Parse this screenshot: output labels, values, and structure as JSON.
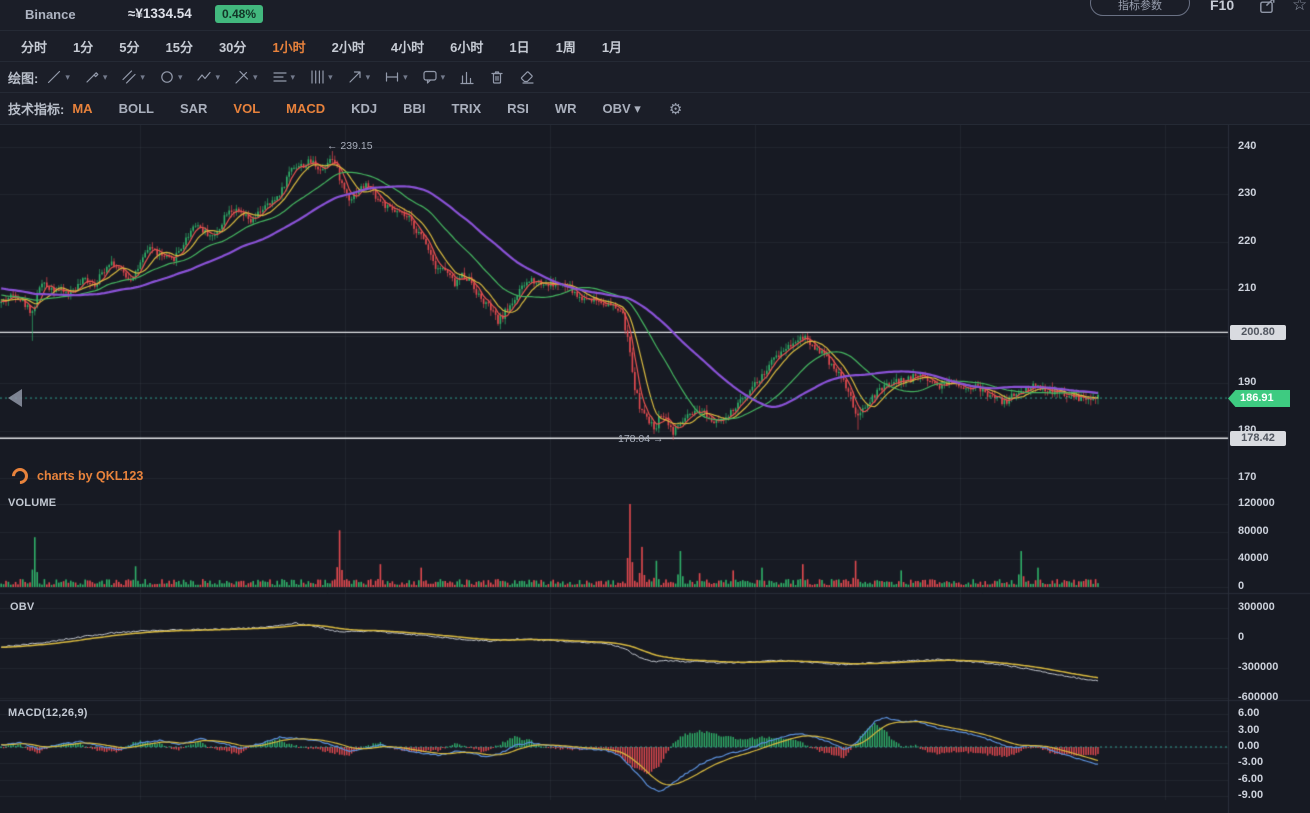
{
  "header": {
    "exchange": "Binance",
    "price_cny": "≈¥1334.54",
    "change_pct": "0.48%",
    "param_button": "指标参数",
    "f10": "F10"
  },
  "timeframes": {
    "items": [
      {
        "label": "分时",
        "active": false
      },
      {
        "label": "1分",
        "active": false
      },
      {
        "label": "5分",
        "active": false
      },
      {
        "label": "15分",
        "active": false
      },
      {
        "label": "30分",
        "active": false
      },
      {
        "label": "1小时",
        "active": true
      },
      {
        "label": "2小时",
        "active": false
      },
      {
        "label": "4小时",
        "active": false
      },
      {
        "label": "6小时",
        "active": false
      },
      {
        "label": "1日",
        "active": false
      },
      {
        "label": "1周",
        "active": false
      },
      {
        "label": "1月",
        "active": false
      }
    ]
  },
  "drawing": {
    "label": "绘图:",
    "tools": [
      "trend-line-icon",
      "brush-icon",
      "channel-icon",
      "circle-icon",
      "zigzag-icon",
      "pitchfork-icon",
      "horizontal-lines-icon",
      "vertical-lines-icon",
      "arrow-icon",
      "measure-icon",
      "comment-icon"
    ],
    "actions": [
      "bar-chart-icon",
      "trash-icon",
      "eraser-icon"
    ]
  },
  "indicators": {
    "label": "技术指标:",
    "items": [
      {
        "label": "MA",
        "active": true
      },
      {
        "label": "BOLL",
        "active": false
      },
      {
        "label": "SAR",
        "active": false
      },
      {
        "label": "VOL",
        "active": true
      },
      {
        "label": "MACD",
        "active": true
      },
      {
        "label": "KDJ",
        "active": false
      },
      {
        "label": "BBI",
        "active": false
      },
      {
        "label": "TRIX",
        "active": false
      },
      {
        "label": "RSI",
        "active": false
      },
      {
        "label": "WR",
        "active": false
      },
      {
        "label": "OBV",
        "active": false,
        "dropdown": true
      }
    ]
  },
  "watermark": "charts by QKL123",
  "panels": {
    "volume_label": "VOLUME",
    "obv_label": "OBV",
    "macd_label": "MACD(12,26,9)"
  },
  "annotations": {
    "high": "← 239.15",
    "low": "178.04 →"
  },
  "price_axis": {
    "ticks": [
      "240",
      "230",
      "220",
      "210",
      "200",
      "190",
      "180",
      "170"
    ],
    "current": "186.91",
    "alert_high": "200.80",
    "alert_low": "178.42"
  },
  "colors": {
    "accent": "#e8823c",
    "up": "#2fae68",
    "down": "#e0494f",
    "ma5": "#e8534f",
    "ma10": "#d8b93f",
    "ma30": "#45b560",
    "ma60": "#8a52d6",
    "obv_line": "#c3c7cf",
    "obv_ma": "#d8b93f",
    "macd_dif": "#5b8fd9",
    "macd_dea": "#d8b93f",
    "dotted_line": "#2f9e8f",
    "alert_line": "#e2e4e8",
    "grid": "rgba(170,180,205,0.07)"
  },
  "chart_data": {
    "type": "candlestick",
    "symbol": "Binance",
    "interval": "1小时",
    "current_price": 186.91,
    "marked_high": 239.15,
    "marked_low": 178.04,
    "alert_lines": [
      200.8,
      178.42
    ],
    "price_axis_ticks": [
      240,
      230,
      220,
      210,
      200,
      190,
      180,
      170
    ],
    "price_keyframes": [
      [
        -150,
        213
      ],
      [
        -90,
        211
      ],
      [
        -40,
        209
      ],
      [
        -15,
        208
      ],
      [
        0,
        207
      ],
      [
        15,
        209
      ],
      [
        28,
        206
      ],
      [
        33,
        205
      ],
      [
        40,
        211
      ],
      [
        55,
        210
      ],
      [
        70,
        209
      ],
      [
        85,
        212
      ],
      [
        95,
        211
      ],
      [
        110,
        216
      ],
      [
        120,
        214
      ],
      [
        130,
        212
      ],
      [
        140,
        215
      ],
      [
        150,
        219
      ],
      [
        160,
        217
      ],
      [
        172,
        216
      ],
      [
        182,
        219
      ],
      [
        195,
        224
      ],
      [
        205,
        222
      ],
      [
        215,
        221
      ],
      [
        228,
        227
      ],
      [
        240,
        226
      ],
      [
        252,
        224
      ],
      [
        262,
        227
      ],
      [
        272,
        228
      ],
      [
        282,
        231
      ],
      [
        292,
        236
      ],
      [
        302,
        236
      ],
      [
        312,
        237
      ],
      [
        322,
        235
      ],
      [
        330,
        238
      ],
      [
        336,
        236
      ],
      [
        342,
        232
      ],
      [
        350,
        229
      ],
      [
        358,
        231
      ],
      [
        368,
        232
      ],
      [
        378,
        229
      ],
      [
        388,
        227
      ],
      [
        398,
        226
      ],
      [
        408,
        225
      ],
      [
        418,
        222
      ],
      [
        428,
        219
      ],
      [
        435,
        215
      ],
      [
        445,
        214
      ],
      [
        455,
        211
      ],
      [
        462,
        213
      ],
      [
        470,
        212
      ],
      [
        480,
        208
      ],
      [
        490,
        206
      ],
      [
        498,
        203
      ],
      [
        505,
        205
      ],
      [
        515,
        208
      ],
      [
        525,
        211
      ],
      [
        532,
        212
      ],
      [
        545,
        211
      ],
      [
        558,
        211
      ],
      [
        570,
        210
      ],
      [
        580,
        208
      ],
      [
        592,
        208
      ],
      [
        605,
        207
      ],
      [
        615,
        206
      ],
      [
        622,
        205
      ],
      [
        628,
        199
      ],
      [
        634,
        190
      ],
      [
        640,
        185
      ],
      [
        648,
        182
      ],
      [
        655,
        180.5
      ],
      [
        662,
        184
      ],
      [
        668,
        182
      ],
      [
        673,
        179.5
      ],
      [
        680,
        181.5
      ],
      [
        688,
        183
      ],
      [
        695,
        183.5
      ],
      [
        705,
        184
      ],
      [
        712,
        182
      ],
      [
        718,
        183
      ],
      [
        725,
        182
      ],
      [
        732,
        184
      ],
      [
        740,
        186
      ],
      [
        750,
        189
      ],
      [
        760,
        191
      ],
      [
        770,
        194
      ],
      [
        778,
        196
      ],
      [
        788,
        198
      ],
      [
        798,
        199.5
      ],
      [
        805,
        200
      ],
      [
        812,
        198
      ],
      [
        820,
        197
      ],
      [
        828,
        195
      ],
      [
        836,
        193
      ],
      [
        845,
        190
      ],
      [
        852,
        186
      ],
      [
        858,
        182.5
      ],
      [
        865,
        185
      ],
      [
        872,
        187
      ],
      [
        880,
        188.5
      ],
      [
        890,
        190
      ],
      [
        900,
        190.5
      ],
      [
        910,
        191
      ],
      [
        920,
        192
      ],
      [
        928,
        191
      ],
      [
        938,
        189.5
      ],
      [
        945,
        190
      ],
      [
        955,
        190.5
      ],
      [
        965,
        189
      ],
      [
        975,
        189.5
      ],
      [
        985,
        188
      ],
      [
        995,
        187
      ],
      [
        1005,
        186
      ],
      [
        1012,
        187.5
      ],
      [
        1020,
        188
      ],
      [
        1028,
        189
      ],
      [
        1038,
        189.5
      ],
      [
        1048,
        188.5
      ],
      [
        1058,
        188
      ],
      [
        1068,
        187.5
      ],
      [
        1078,
        187
      ],
      [
        1088,
        186.5
      ],
      [
        1098,
        186.9
      ]
    ],
    "wick_marks": [
      [
        333,
        "high",
        239.15
      ],
      [
        673,
        "low",
        178.04
      ],
      [
        33,
        "low",
        199.0
      ],
      [
        857,
        "low",
        180.2
      ]
    ],
    "moving_average_periods": [
      5,
      10,
      30,
      60
    ],
    "volume": {
      "axis": [
        "120000",
        "80000",
        "40000",
        "0"
      ],
      "base_range": [
        2500,
        11500
      ],
      "spikes": [
        [
          35,
          72000
        ],
        [
          135,
          30000
        ],
        [
          340,
          82000
        ],
        [
          380,
          33000
        ],
        [
          420,
          28000
        ],
        [
          630,
          120000
        ],
        [
          642,
          58000
        ],
        [
          656,
          38000
        ],
        [
          681,
          52000
        ],
        [
          700,
          20000
        ],
        [
          732,
          24000
        ],
        [
          762,
          28000
        ],
        [
          802,
          33000
        ],
        [
          856,
          38000
        ],
        [
          900,
          24000
        ],
        [
          1020,
          52000
        ],
        [
          1038,
          28000
        ]
      ]
    },
    "obv": {
      "axis": [
        "300000",
        "0",
        "-300000",
        "-600000"
      ],
      "keyframes": [
        [
          0,
          -90000
        ],
        [
          40,
          -50000
        ],
        [
          80,
          10000
        ],
        [
          120,
          60000
        ],
        [
          160,
          75000
        ],
        [
          200,
          85000
        ],
        [
          240,
          95000
        ],
        [
          270,
          110000
        ],
        [
          295,
          150000
        ],
        [
          315,
          115000
        ],
        [
          340,
          60000
        ],
        [
          370,
          70000
        ],
        [
          400,
          45000
        ],
        [
          430,
          20000
        ],
        [
          460,
          -10000
        ],
        [
          490,
          -30000
        ],
        [
          520,
          -10000
        ],
        [
          550,
          -25000
        ],
        [
          580,
          -40000
        ],
        [
          610,
          -60000
        ],
        [
          625,
          -110000
        ],
        [
          640,
          -200000
        ],
        [
          655,
          -240000
        ],
        [
          670,
          -225000
        ],
        [
          685,
          -240000
        ],
        [
          700,
          -235000
        ],
        [
          720,
          -250000
        ],
        [
          740,
          -245000
        ],
        [
          760,
          -235000
        ],
        [
          780,
          -225000
        ],
        [
          800,
          -235000
        ],
        [
          820,
          -250000
        ],
        [
          840,
          -265000
        ],
        [
          860,
          -255000
        ],
        [
          880,
          -245000
        ],
        [
          900,
          -235000
        ],
        [
          920,
          -225000
        ],
        [
          940,
          -215000
        ],
        [
          960,
          -230000
        ],
        [
          980,
          -245000
        ],
        [
          1000,
          -265000
        ],
        [
          1020,
          -295000
        ],
        [
          1040,
          -330000
        ],
        [
          1060,
          -370000
        ],
        [
          1080,
          -405000
        ],
        [
          1098,
          -430000
        ]
      ]
    },
    "macd": {
      "params": "12,26,9",
      "axis": [
        "6.00",
        "3.00",
        "0.00",
        "-3.00",
        "-6.00",
        "-9.00"
      ],
      "dif_keyframes": [
        [
          0,
          0.3
        ],
        [
          20,
          0.8
        ],
        [
          40,
          -0.4
        ],
        [
          60,
          0.5
        ],
        [
          80,
          1.0
        ],
        [
          100,
          0.2
        ],
        [
          120,
          -0.5
        ],
        [
          140,
          0.8
        ],
        [
          160,
          1.2
        ],
        [
          180,
          0.5
        ],
        [
          200,
          1.5
        ],
        [
          220,
          0.8
        ],
        [
          240,
          -0.3
        ],
        [
          260,
          0.6
        ],
        [
          280,
          1.8
        ],
        [
          300,
          1.5
        ],
        [
          320,
          1.0
        ],
        [
          335,
          0.2
        ],
        [
          350,
          -0.8
        ],
        [
          365,
          -0.3
        ],
        [
          380,
          0.4
        ],
        [
          395,
          -0.2
        ],
        [
          410,
          -0.8
        ],
        [
          425,
          -1.2
        ],
        [
          440,
          -1.5
        ],
        [
          455,
          -0.8
        ],
        [
          470,
          -1.0
        ],
        [
          485,
          -1.8
        ],
        [
          500,
          -1.2
        ],
        [
          515,
          0.3
        ],
        [
          530,
          0.8
        ],
        [
          545,
          0.4
        ],
        [
          560,
          0.1
        ],
        [
          575,
          -0.2
        ],
        [
          590,
          -0.4
        ],
        [
          605,
          -0.6
        ],
        [
          620,
          -1.5
        ],
        [
          635,
          -4.5
        ],
        [
          650,
          -7.5
        ],
        [
          660,
          -8.2
        ],
        [
          670,
          -7.0
        ],
        [
          685,
          -5.0
        ],
        [
          700,
          -3.2
        ],
        [
          715,
          -2.0
        ],
        [
          730,
          -1.2
        ],
        [
          745,
          -0.6
        ],
        [
          760,
          0.5
        ],
        [
          775,
          1.5
        ],
        [
          790,
          2.2
        ],
        [
          800,
          2.4
        ],
        [
          815,
          1.8
        ],
        [
          830,
          0.8
        ],
        [
          845,
          -0.5
        ],
        [
          855,
          0.5
        ],
        [
          865,
          2.5
        ],
        [
          875,
          4.8
        ],
        [
          885,
          5.4
        ],
        [
          895,
          4.9
        ],
        [
          905,
          4.6
        ],
        [
          915,
          4.8
        ],
        [
          925,
          4.2
        ],
        [
          935,
          3.6
        ],
        [
          945,
          3.2
        ],
        [
          955,
          3.0
        ],
        [
          965,
          2.6
        ],
        [
          975,
          2.2
        ],
        [
          985,
          1.6
        ],
        [
          995,
          1.0
        ],
        [
          1005,
          0.2
        ],
        [
          1015,
          -0.2
        ],
        [
          1025,
          0.1
        ],
        [
          1035,
          0.3
        ],
        [
          1045,
          -0.2
        ],
        [
          1055,
          -0.8
        ],
        [
          1065,
          -1.4
        ],
        [
          1075,
          -2.0
        ],
        [
          1085,
          -2.6
        ],
        [
          1098,
          -3.2
        ]
      ]
    }
  }
}
